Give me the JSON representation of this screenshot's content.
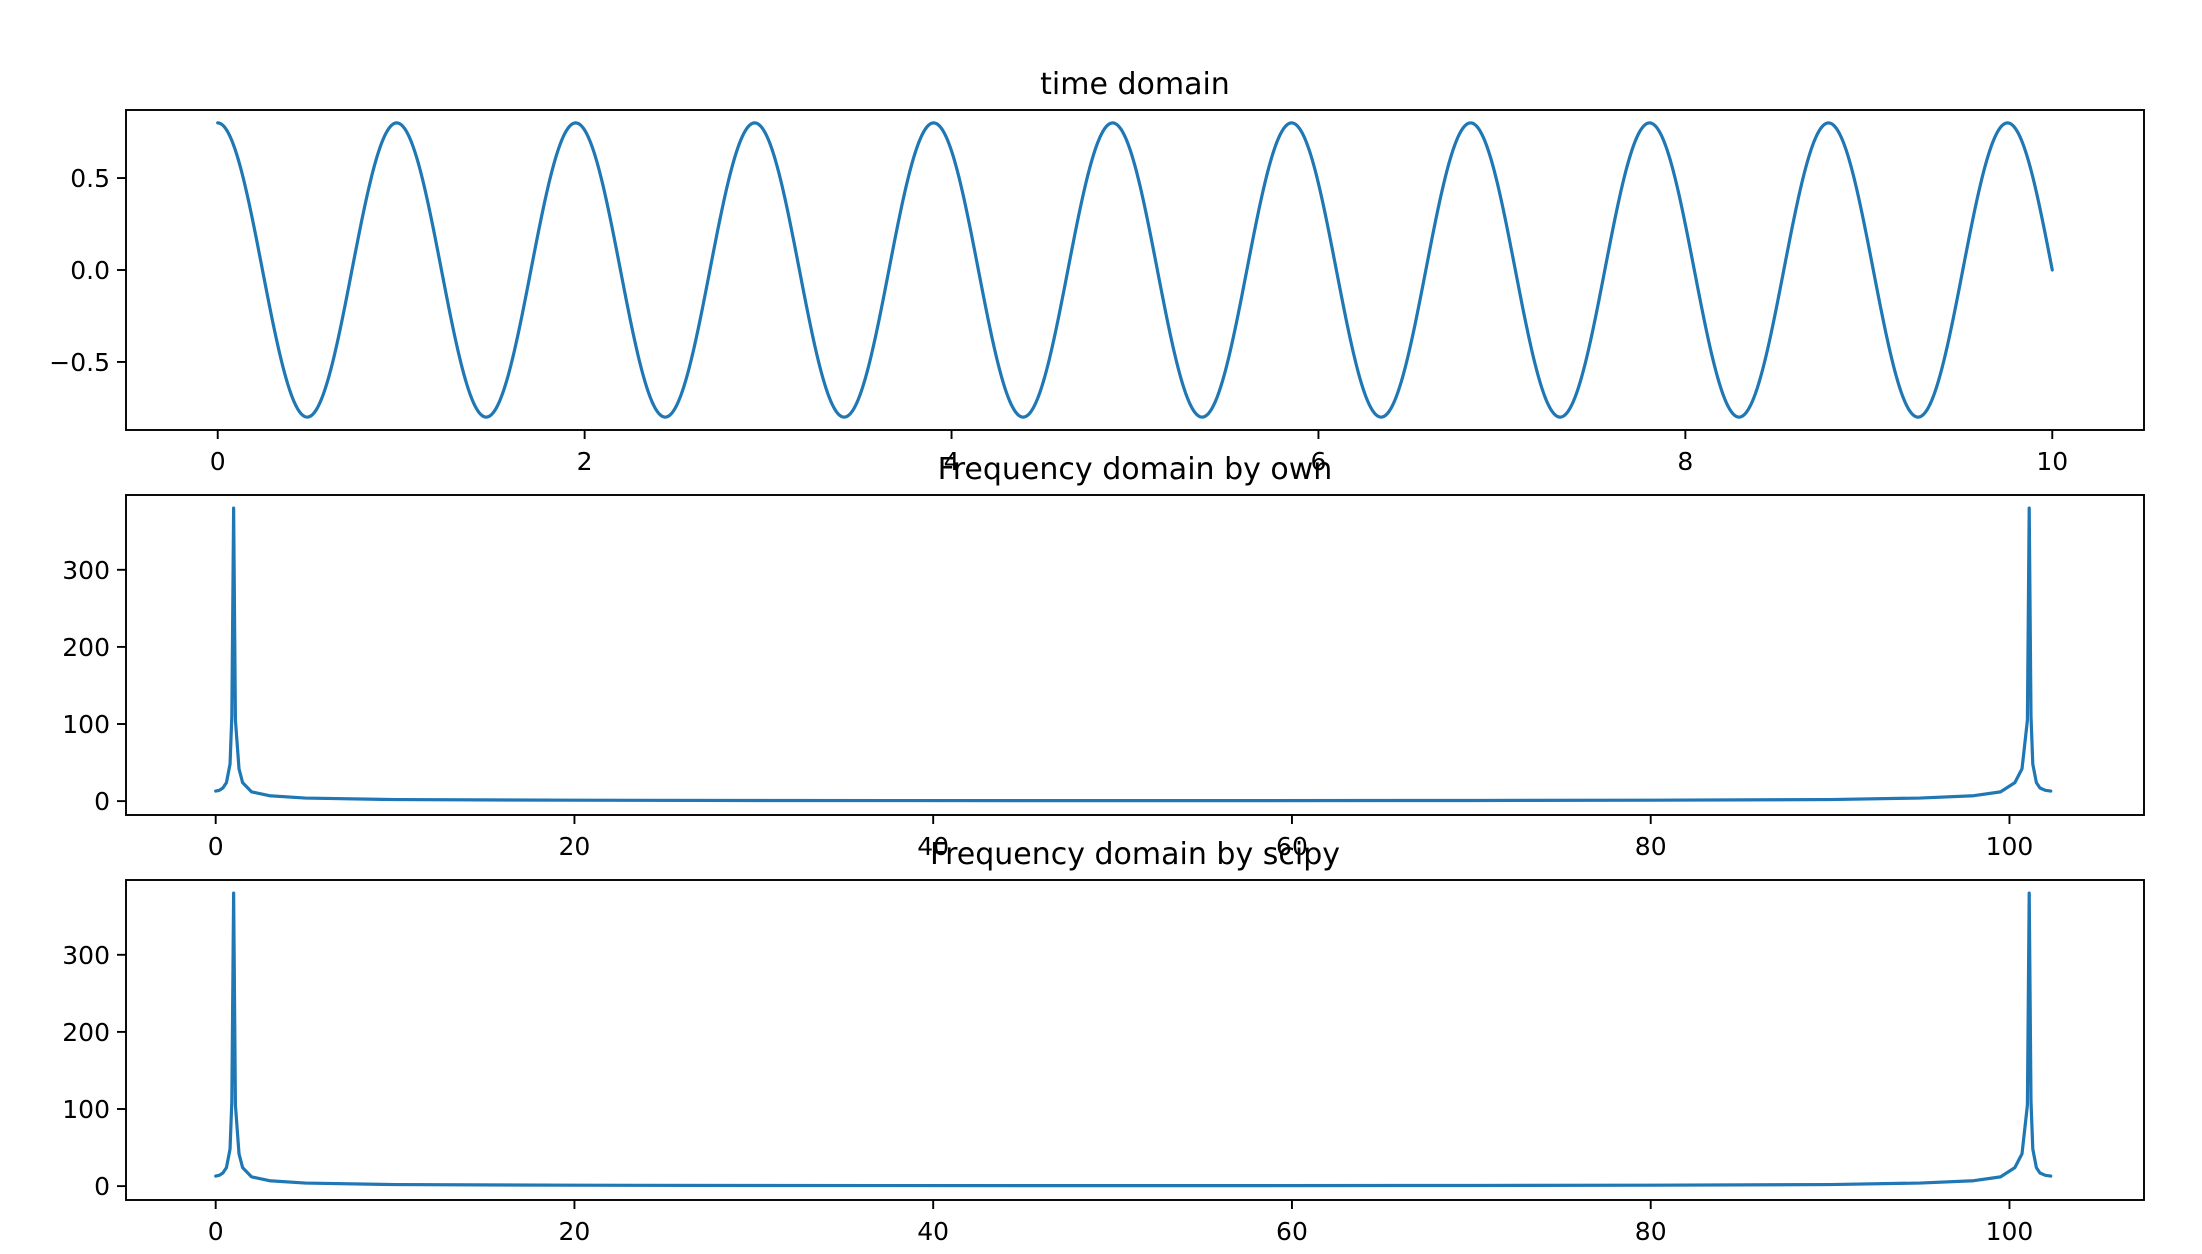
{
  "figure": {
    "background": "#ffffff",
    "line_color": "#1f77b4"
  },
  "chart_data": [
    {
      "type": "line",
      "title": "time domain",
      "xlabel": "",
      "ylabel": "",
      "xlim": [
        -0.5,
        10.5
      ],
      "ylim": [
        -0.87,
        0.87
      ],
      "xticks": [
        0,
        2,
        4,
        6,
        8,
        10
      ],
      "xtick_labels": [
        "0",
        "2",
        "4",
        "6",
        "8",
        "10"
      ],
      "yticks": [
        -0.5,
        0.0,
        0.5
      ],
      "ytick_labels": [
        "−0.5",
        "0.0",
        "0.5"
      ],
      "grid": false,
      "series": [
        {
          "color": "#1f77b4",
          "function": "0.8*cos(2*pi*1.025*t)",
          "x_range": [
            0,
            10
          ]
        }
      ]
    },
    {
      "type": "line",
      "title": "Frequency domain by own",
      "xlabel": "",
      "ylabel": "",
      "xlim": [
        -5,
        107.5
      ],
      "ylim": [
        -18,
        397
      ],
      "xticks": [
        0,
        20,
        40,
        60,
        80,
        100
      ],
      "xtick_labels": [
        "0",
        "20",
        "40",
        "60",
        "80",
        "100"
      ],
      "yticks": [
        0,
        100,
        200,
        300
      ],
      "ytick_labels": [
        "0",
        "100",
        "200",
        "300"
      ],
      "grid": false,
      "series": [
        {
          "color": "#1f77b4",
          "x": [
            0,
            0.2,
            0.4,
            0.6,
            0.8,
            0.9,
            1.0,
            1.1,
            1.3,
            1.5,
            2,
            3,
            5,
            10,
            20,
            30,
            51,
            70,
            80,
            90,
            95,
            98,
            99.5,
            100.3,
            100.7,
            101,
            101.1,
            101.2,
            101.3,
            101.5,
            101.7,
            102.0,
            102.3
          ],
          "values": [
            13,
            14,
            17,
            24,
            48,
            110,
            380,
            105,
            42,
            24,
            12,
            7,
            4,
            2,
            1.2,
            0.8,
            0.6,
            0.8,
            1.2,
            2,
            4,
            7,
            12,
            24,
            42,
            105,
            380,
            110,
            48,
            24,
            17,
            14,
            13
          ]
        }
      ]
    },
    {
      "type": "line",
      "title": "Frequency domain by scipy",
      "xlabel": "",
      "ylabel": "",
      "xlim": [
        -5,
        107.5
      ],
      "ylim": [
        -18,
        397
      ],
      "xticks": [
        0,
        20,
        40,
        60,
        80,
        100
      ],
      "xtick_labels": [
        "0",
        "20",
        "40",
        "60",
        "80",
        "100"
      ],
      "yticks": [
        0,
        100,
        200,
        300
      ],
      "ytick_labels": [
        "0",
        "100",
        "200",
        "300"
      ],
      "grid": false,
      "series": [
        {
          "color": "#1f77b4",
          "x": [
            0,
            0.2,
            0.4,
            0.6,
            0.8,
            0.9,
            1.0,
            1.1,
            1.3,
            1.5,
            2,
            3,
            5,
            10,
            20,
            30,
            51,
            70,
            80,
            90,
            95,
            98,
            99.5,
            100.3,
            100.7,
            101,
            101.1,
            101.2,
            101.3,
            101.5,
            101.7,
            102.0,
            102.3
          ],
          "values": [
            13,
            14,
            17,
            24,
            48,
            110,
            380,
            105,
            42,
            24,
            12,
            7,
            4,
            2,
            1.2,
            0.8,
            0.6,
            0.8,
            1.2,
            2,
            4,
            7,
            12,
            24,
            42,
            105,
            380,
            110,
            48,
            24,
            17,
            14,
            13
          ]
        }
      ]
    }
  ]
}
